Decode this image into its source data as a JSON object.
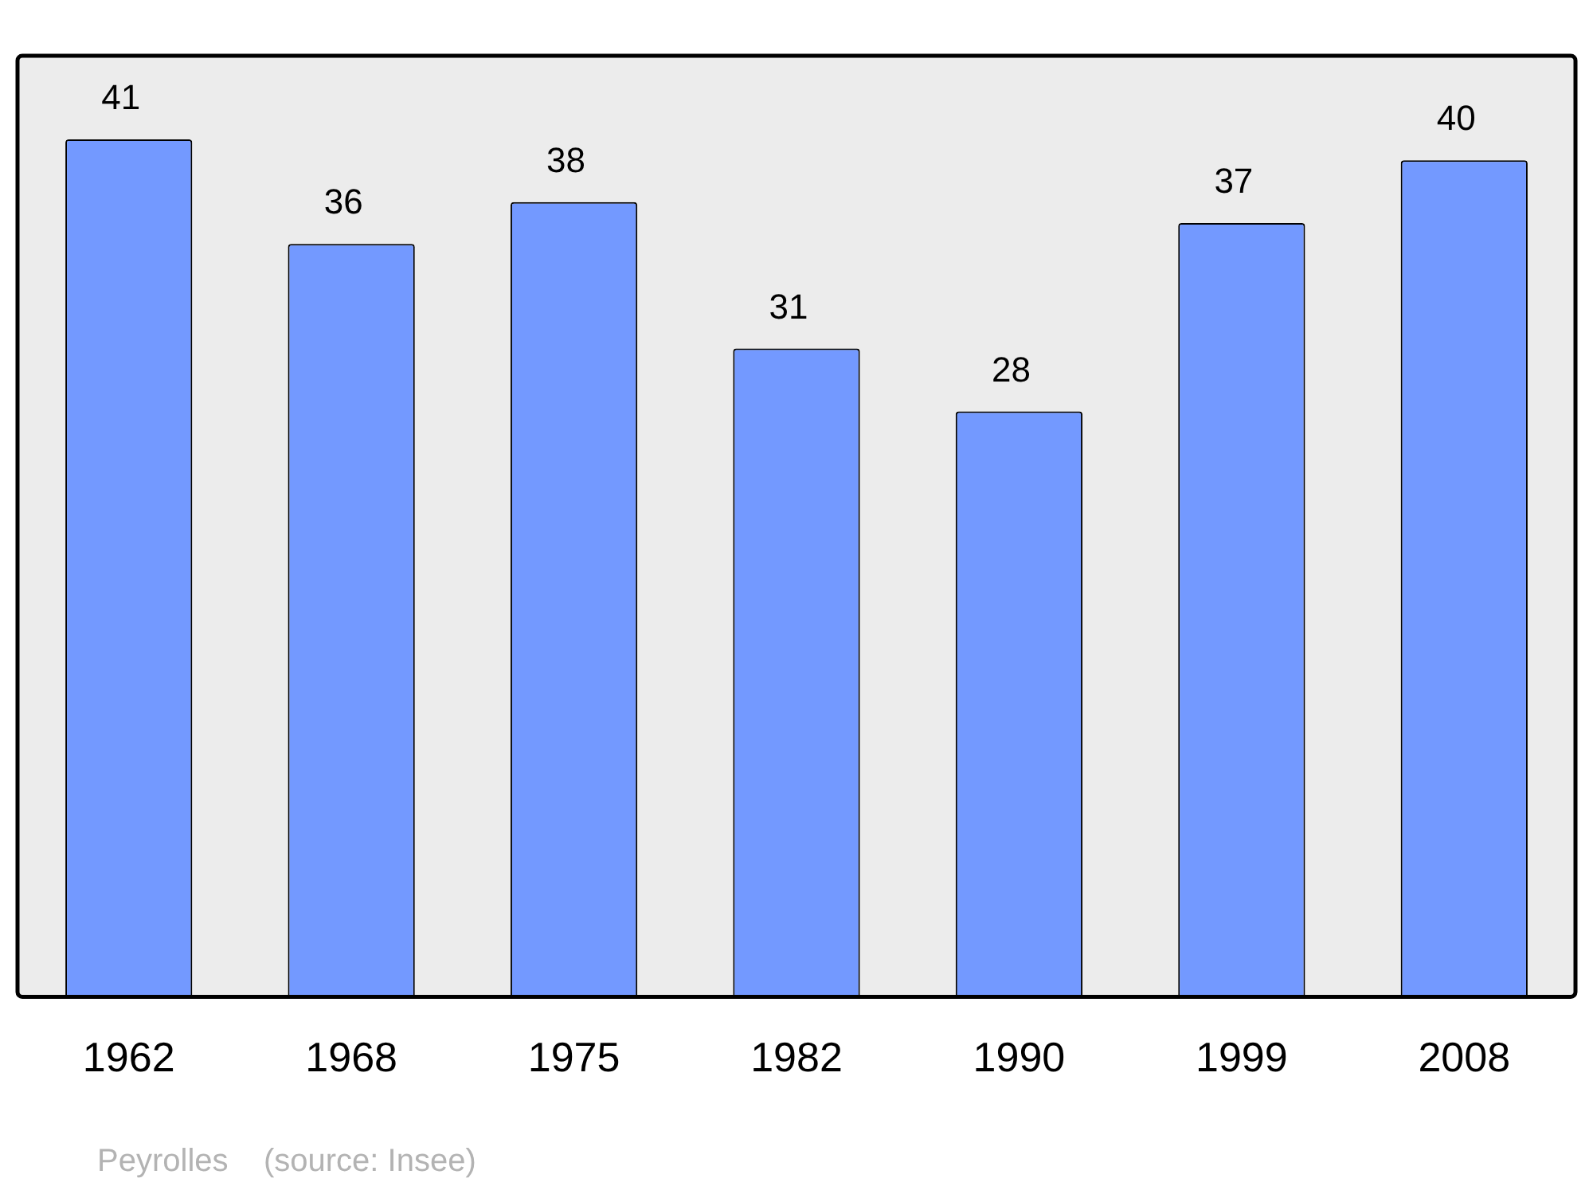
{
  "chart_data": {
    "type": "bar",
    "categories": [
      "1962",
      "1968",
      "1975",
      "1982",
      "1990",
      "1999",
      "2008"
    ],
    "values": [
      41,
      36,
      38,
      31,
      28,
      37,
      40
    ],
    "color": "#7399ff",
    "data_labels": true,
    "annotations": [
      "Peyrolles    (source: Insee)"
    ]
  }
}
